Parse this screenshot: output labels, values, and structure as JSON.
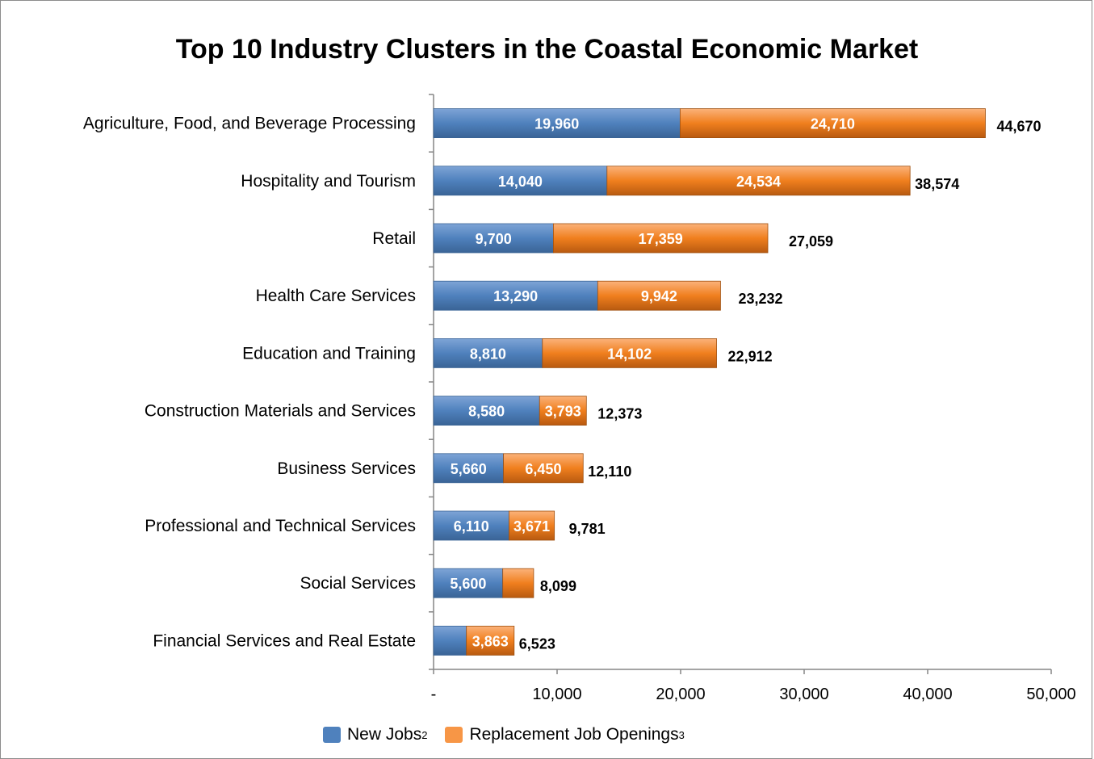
{
  "chart_data": {
    "type": "bar",
    "orientation": "horizontal",
    "stacked": true,
    "title": "Top 10 Industry Clusters in the Coastal Economic Market",
    "categories": [
      "Agriculture, Food, and Beverage Processing",
      "Hospitality and Tourism",
      "Retail",
      "Health Care Services",
      "Education and Training",
      "Construction Materials and Services",
      "Business Services",
      "Professional and Technical Services",
      "Social Services",
      "Financial Services and Real Estate"
    ],
    "series": [
      {
        "name": "New Jobs",
        "superscript": "2",
        "color": "#4f81bd",
        "values": [
          19960,
          14040,
          9700,
          13290,
          8810,
          8580,
          5660,
          6110,
          5600,
          2660
        ],
        "labels": [
          "19,960",
          "14,040",
          "9,700",
          "13,290",
          "8,810",
          "8,580",
          "5,660",
          "6,110",
          "5,600",
          ""
        ]
      },
      {
        "name": "Replacement Job Openings",
        "superscript": "3",
        "color": "#f79646",
        "values": [
          24710,
          24534,
          17359,
          9942,
          14102,
          3793,
          6450,
          3671,
          2499,
          3863
        ],
        "labels": [
          "24,710",
          "24,534",
          "17,359",
          "9,942",
          "14,102",
          "3,793",
          "6,450",
          "3,671",
          "",
          "3,863"
        ]
      }
    ],
    "totals": [
      "44,670",
      "38,574",
      "27,059",
      "23,232",
      "22,912",
      "12,373",
      "12,110",
      "9,781",
      "8,099",
      "6,523"
    ],
    "x_ticks": [
      0,
      10000,
      20000,
      30000,
      40000,
      50000
    ],
    "x_tick_labels": [
      "-",
      "10,000",
      "20,000",
      "30,000",
      "40,000",
      "50,000"
    ],
    "xlim": [
      0,
      50000
    ],
    "grid": false,
    "legend_position": "bottom"
  }
}
